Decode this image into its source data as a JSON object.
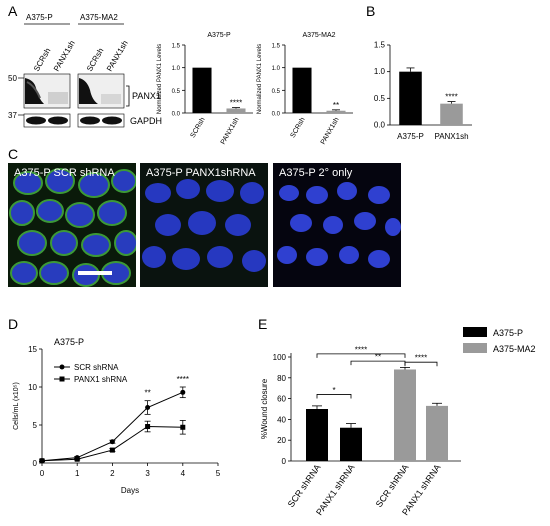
{
  "panel_letters": {
    "a": "A",
    "b": "B",
    "c": "C",
    "d": "D",
    "e": "E"
  },
  "blot": {
    "cell_line_1": "A375-P",
    "cell_line_2": "A375-MA2",
    "lane_labels": [
      "SCRsh",
      "PANX1sh",
      "SCRsh",
      "PANX1sh"
    ],
    "marker_50": "50",
    "marker_37": "37",
    "band_panx1": "PANX1",
    "band_gapdh": "GAPDH"
  },
  "chart_data": [
    {
      "id": "A-P",
      "type": "bar",
      "title": "A375-P",
      "ylabel": "Normalized PANX1 Levels",
      "categories": [
        "SCRsh",
        "PANX1sh"
      ],
      "values": [
        1.0,
        0.1
      ],
      "errors": [
        0,
        0.02
      ],
      "ylim": [
        0,
        1.5
      ],
      "yticks": [
        "0.0",
        "0.5",
        "1.0",
        "1.5"
      ],
      "sig": [
        "",
        "****"
      ],
      "colors": [
        "#000000",
        "#9a9a9a"
      ]
    },
    {
      "id": "A-MA2",
      "type": "bar",
      "title": "A375-MA2",
      "ylabel": "Normalized PANX1 Levels",
      "categories": [
        "SCRsh",
        "PANX1sh"
      ],
      "values": [
        1.0,
        0.05
      ],
      "errors": [
        0,
        0.02
      ],
      "ylim": [
        0,
        1.5
      ],
      "yticks": [
        "0.0",
        "0.5",
        "1.0",
        "1.5"
      ],
      "sig": [
        "",
        "**"
      ],
      "colors": [
        "#000000",
        "#9a9a9a"
      ]
    },
    {
      "id": "B",
      "type": "bar",
      "title": "",
      "ylabel": "Normalized PANX1 mRNA",
      "categories": [
        "A375-P",
        "PANX1sh"
      ],
      "values": [
        1.0,
        0.4
      ],
      "errors": [
        0.07,
        0.04
      ],
      "ylim": [
        0,
        1.5
      ],
      "yticks": [
        "0.0",
        "0.5",
        "1.0",
        "1.5"
      ],
      "sig": [
        "",
        "****"
      ],
      "colors": [
        "#000000",
        "#9a9a9a"
      ]
    },
    {
      "id": "D",
      "type": "line",
      "title": "A375-P",
      "xlabel": "Days",
      "ylabel": "Cells/mL (x10⁵)",
      "x": [
        0,
        1,
        2,
        3,
        4
      ],
      "xlim": [
        0,
        5
      ],
      "xticks": [
        "0",
        "1",
        "2",
        "3",
        "4",
        "5"
      ],
      "ylim": [
        0,
        15
      ],
      "yticks": [
        "0",
        "5",
        "10",
        "15"
      ],
      "series": [
        {
          "name": "SCR shRNA",
          "marker": "circle",
          "values": [
            0.3,
            0.7,
            2.8,
            7.3,
            9.3
          ],
          "errors": [
            0.1,
            0.15,
            0.2,
            0.9,
            0.7
          ]
        },
        {
          "name": "PANX1 shRNA",
          "marker": "square",
          "values": [
            0.3,
            0.5,
            1.7,
            4.8,
            4.7
          ],
          "errors": [
            0.1,
            0.1,
            0.2,
            0.7,
            0.9
          ]
        }
      ],
      "sig_labels": [
        {
          "x": 3,
          "text": "**"
        },
        {
          "x": 4,
          "text": "****"
        }
      ]
    },
    {
      "id": "E",
      "type": "bar",
      "title": "",
      "ylabel": "%Wound closure",
      "categories": [
        "SCR shRNA",
        "PANX1 shRNA",
        "SCR shRNA",
        "PANX1 shRNA"
      ],
      "values": [
        50,
        32,
        88,
        53
      ],
      "errors": [
        3,
        4,
        2,
        2.5
      ],
      "ylim": [
        0,
        100
      ],
      "yticks": [
        "0",
        "20",
        "40",
        "60",
        "80",
        "100"
      ],
      "colors": [
        "#000000",
        "#000000",
        "#9a9a9a",
        "#9a9a9a"
      ],
      "legend": [
        {
          "name": "A375-P",
          "color": "#000000"
        },
        {
          "name": "A375-MA2",
          "color": "#9a9a9a"
        }
      ],
      "brackets": [
        {
          "from": 0,
          "to": 1,
          "text": "*"
        },
        {
          "from": 1,
          "to": 2,
          "text": "**"
        },
        {
          "from": 0,
          "to": 2,
          "text": "****"
        },
        {
          "from": 2,
          "to": 3,
          "text": "****"
        }
      ]
    }
  ],
  "micrographs": [
    {
      "label": "A375-P SCR shRNA"
    },
    {
      "label": "A375-P PANX1shRNA"
    },
    {
      "label": "A375-P 2° only"
    }
  ]
}
